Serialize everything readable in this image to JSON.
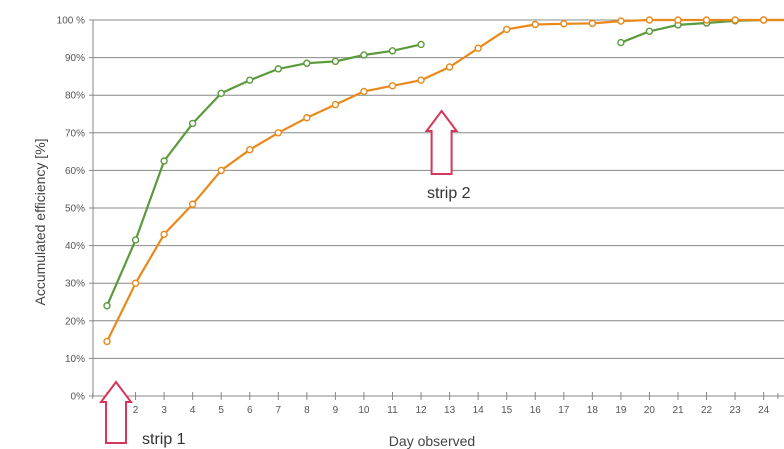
{
  "chart_data": {
    "type": "line",
    "xlabel": "Day observed",
    "ylabel": "Accumulated efficiency  [%]",
    "x_ticks": [
      1,
      2,
      3,
      4,
      5,
      6,
      7,
      8,
      9,
      10,
      11,
      12,
      13,
      14,
      15,
      16,
      17,
      18,
      19,
      20,
      21,
      22,
      23,
      24
    ],
    "y_ticks": [
      0,
      10,
      20,
      30,
      40,
      50,
      60,
      70,
      80,
      90,
      100
    ],
    "y_tick_labels": [
      "0%",
      "10%",
      "20%",
      "30%",
      "40%",
      "50%",
      "60%",
      "70%",
      "80%",
      "90%",
      "100 %"
    ],
    "xlim": [
      0.5,
      25.5
    ],
    "ylim": [
      0,
      100
    ],
    "grid": "horizontal",
    "colors": {
      "green": "#5a9a3c",
      "orange": "#e8891a",
      "arrow": "#d6365a"
    },
    "series": [
      {
        "color": "#5a9a3c",
        "segments": [
          [
            [
              1,
              24
            ],
            [
              2,
              41.5
            ],
            [
              3,
              62.5
            ],
            [
              4,
              72.5
            ],
            [
              5,
              80.5
            ],
            [
              6,
              84
            ],
            [
              7,
              87
            ],
            [
              8,
              88.5
            ],
            [
              9,
              89
            ],
            [
              10,
              90.7
            ],
            [
              11,
              91.8
            ],
            [
              12,
              93.5
            ]
          ],
          [
            [
              19,
              94
            ],
            [
              20,
              97
            ],
            [
              21,
              98.7
            ],
            [
              22,
              99.2
            ],
            [
              23,
              99.8
            ],
            [
              24,
              100
            ],
            [
              25,
              100
            ]
          ]
        ]
      },
      {
        "color": "#e8891a",
        "segments": [
          [
            [
              1,
              14.5
            ],
            [
              2,
              30
            ],
            [
              3,
              43
            ],
            [
              4,
              51
            ],
            [
              5,
              60
            ],
            [
              6,
              65.5
            ],
            [
              7,
              70
            ],
            [
              8,
              74
            ],
            [
              9,
              77.5
            ],
            [
              10,
              81
            ],
            [
              11,
              82.5
            ],
            [
              12,
              84
            ],
            [
              13,
              87.5
            ],
            [
              14,
              92.5
            ],
            [
              15,
              97.5
            ],
            [
              16,
              98.8
            ],
            [
              17,
              99
            ],
            [
              18,
              99.1
            ],
            [
              19,
              99.7
            ],
            [
              20,
              100
            ],
            [
              21,
              100
            ],
            [
              22,
              100
            ],
            [
              23,
              100
            ],
            [
              24,
              100
            ],
            [
              25,
              100
            ]
          ]
        ]
      }
    ],
    "annotations": [
      {
        "text": "strip 1",
        "x": 1.3,
        "direction": "up"
      },
      {
        "text": "strip 2",
        "x": 13,
        "direction": "up"
      }
    ]
  }
}
